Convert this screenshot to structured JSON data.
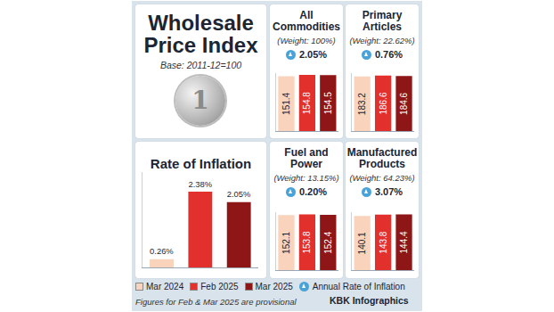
{
  "header": {
    "title": "Wholesale Price Index",
    "subtitle": "Base: 2011-12=100",
    "icon_text": "1"
  },
  "chart_data": [
    {
      "type": "bar",
      "title": "Rate of Inflation",
      "categories": [
        "Mar 2024",
        "Feb 2025",
        "Mar 2025"
      ],
      "values": [
        0.26,
        2.38,
        2.05
      ],
      "value_labels": [
        "0.26%",
        "2.38%",
        "2.05%"
      ],
      "colors": [
        "#f9d3bb",
        "#e2312d",
        "#8e1616"
      ],
      "data_labels": true,
      "tick_labels": false,
      "ylim": [
        0,
        3
      ]
    },
    {
      "type": "bar",
      "title": "All Commodities",
      "subtitle": "(Weight: 100%)",
      "annual_inflation": "2.05%",
      "categories": [
        "Mar 2024",
        "Feb 2025",
        "Mar 2025"
      ],
      "values": [
        151.4,
        154.8,
        154.5
      ],
      "colors": [
        "#f9d3bb",
        "#e2312d",
        "#8e1616"
      ],
      "data_labels": true,
      "tick_labels": false,
      "ylim": [
        0,
        160
      ]
    },
    {
      "type": "bar",
      "title": "Primary Articles",
      "subtitle": "(Weight: 22.62%)",
      "annual_inflation": "0.76%",
      "categories": [
        "Mar 2024",
        "Feb 2025",
        "Mar 2025"
      ],
      "values": [
        183.2,
        186.6,
        184.6
      ],
      "colors": [
        "#f9d3bb",
        "#e2312d",
        "#8e1616"
      ],
      "data_labels": true,
      "tick_labels": false,
      "ylim": [
        0,
        195
      ]
    },
    {
      "type": "bar",
      "title": "Fuel and Power",
      "subtitle": "(Weight: 13.15%)",
      "annual_inflation": "0.20%",
      "categories": [
        "Mar 2024",
        "Feb 2025",
        "Mar 2025"
      ],
      "values": [
        152.1,
        153.8,
        152.4
      ],
      "colors": [
        "#f9d3bb",
        "#e2312d",
        "#8e1616"
      ],
      "data_labels": true,
      "tick_labels": false,
      "ylim": [
        0,
        160
      ]
    },
    {
      "type": "bar",
      "title": "Manufactured Products",
      "subtitle": "(Weight: 64.23%)",
      "annual_inflation": "3.07%",
      "categories": [
        "Mar 2024",
        "Feb 2025",
        "Mar 2025"
      ],
      "values": [
        140.1,
        143.8,
        144.4
      ],
      "colors": [
        "#f9d3bb",
        "#e2312d",
        "#8e1616"
      ],
      "data_labels": true,
      "tick_labels": false,
      "ylim": [
        0,
        150
      ]
    }
  ],
  "footer": {
    "legend_note": "Annual Rate of Inflation",
    "note": "Figures for Feb & Mar 2025 are provisional",
    "source": "KBK Infographics"
  }
}
